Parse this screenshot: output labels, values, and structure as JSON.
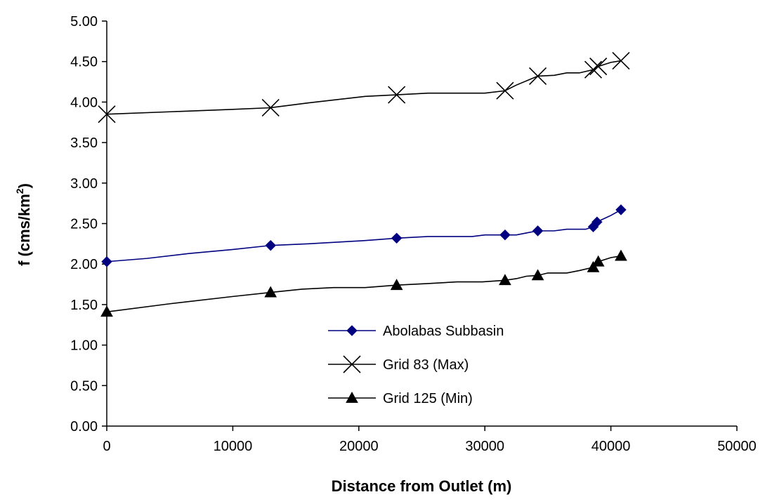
{
  "chart_data": {
    "type": "line",
    "title": "",
    "xlabel": "Distance from Outlet (m)",
    "ylabel_main": "f (cms/km",
    "ylabel_sup": "2",
    "ylabel_tail": ")",
    "xlim": [
      0,
      50000
    ],
    "ylim": [
      0,
      5
    ],
    "x_ticks": [
      0,
      10000,
      20000,
      30000,
      40000,
      50000
    ],
    "x_tick_labels": [
      "0",
      "10000",
      "20000",
      "30000",
      "40000",
      "50000"
    ],
    "y_ticks": [
      0,
      0.5,
      1,
      1.5,
      2,
      2.5,
      3,
      3.5,
      4,
      4.5,
      5
    ],
    "y_tick_labels": [
      "0.00",
      "0.50",
      "1.00",
      "1.50",
      "2.00",
      "2.50",
      "3.00",
      "3.50",
      "4.00",
      "4.50",
      "5.00"
    ],
    "grid": false,
    "legend_position": "lower-center",
    "series": [
      {
        "name": "Abolabas Subbasin",
        "color": "#000080",
        "marker": "diamond",
        "line_x": [
          0,
          3200,
          6500,
          10000,
          13000,
          16000,
          20500,
          23000,
          25500,
          29000,
          30000,
          31600,
          32500,
          33500,
          34200,
          35500,
          36500,
          38000,
          38600,
          38900,
          39300,
          40000,
          40800
        ],
        "line_y": [
          2.03,
          2.07,
          2.13,
          2.18,
          2.23,
          2.25,
          2.29,
          2.32,
          2.34,
          2.34,
          2.36,
          2.36,
          2.36,
          2.39,
          2.41,
          2.41,
          2.43,
          2.43,
          2.46,
          2.52,
          2.55,
          2.6,
          2.67
        ],
        "marker_x": [
          0,
          13000,
          23000,
          31600,
          34200,
          38600,
          38900,
          40800
        ],
        "marker_y": [
          2.03,
          2.23,
          2.32,
          2.36,
          2.41,
          2.46,
          2.52,
          2.67
        ]
      },
      {
        "name": "Grid 83 (Max)",
        "color": "#000000",
        "marker": "x",
        "line_x": [
          0,
          5000,
          10000,
          13000,
          16000,
          20500,
          23000,
          25500,
          29000,
          30000,
          31600,
          32500,
          34200,
          35500,
          36500,
          37500,
          38600,
          39000,
          40000,
          40800
        ],
        "line_y": [
          3.85,
          3.88,
          3.91,
          3.93,
          3.99,
          4.07,
          4.09,
          4.11,
          4.11,
          4.11,
          4.14,
          4.21,
          4.32,
          4.33,
          4.36,
          4.36,
          4.4,
          4.44,
          4.49,
          4.51
        ],
        "marker_x": [
          0,
          13000,
          23000,
          31600,
          34200,
          38600,
          39000,
          40800
        ],
        "marker_y": [
          3.85,
          3.93,
          4.09,
          4.14,
          4.32,
          4.4,
          4.44,
          4.51
        ]
      },
      {
        "name": "Grid 125 (Min)",
        "color": "#000000",
        "marker": "triangle",
        "line_x": [
          0,
          5000,
          10000,
          13000,
          15500,
          18000,
          20500,
          23000,
          25500,
          27800,
          29800,
          31600,
          32500,
          33300,
          34200,
          35000,
          36500,
          37500,
          38600,
          39000,
          40000,
          40800
        ],
        "line_y": [
          1.41,
          1.51,
          1.6,
          1.65,
          1.69,
          1.71,
          1.71,
          1.74,
          1.76,
          1.78,
          1.78,
          1.8,
          1.82,
          1.85,
          1.86,
          1.89,
          1.89,
          1.92,
          1.96,
          2.03,
          2.08,
          2.1
        ],
        "marker_x": [
          0,
          13000,
          23000,
          31600,
          34200,
          38600,
          39000,
          40800
        ],
        "marker_y": [
          1.41,
          1.65,
          1.74,
          1.8,
          1.86,
          1.96,
          2.03,
          2.1
        ]
      }
    ]
  }
}
